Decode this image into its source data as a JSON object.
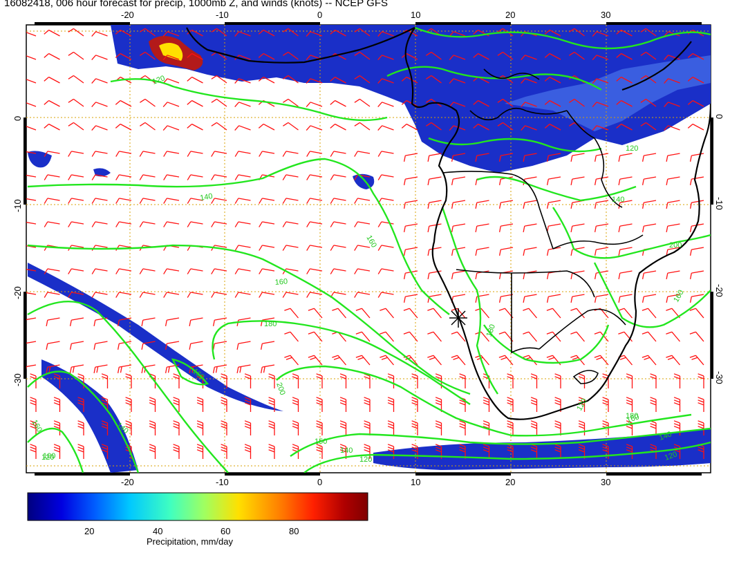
{
  "title": "16082418, 006 hour forecast for precip, 1000mb Z, and winds (knots) -- NCEP GFS",
  "lon_ticks": [
    "-20",
    "-10",
    "0",
    "10",
    "20",
    "30"
  ],
  "lat_ticks": [
    "0",
    "-10",
    "-20",
    "-30"
  ],
  "contour_labels": [
    "120",
    "140",
    "140",
    "120",
    "160",
    "180",
    "160",
    "200",
    "160",
    "140",
    "120",
    "150",
    "140",
    "100",
    "120",
    "160",
    "180",
    "140",
    "120",
    "160",
    "180",
    "120",
    "160",
    "200"
  ],
  "colorbar": {
    "ticks": [
      "20",
      "40",
      "60",
      "80"
    ],
    "label": "Precipitation, mm/day",
    "range": [
      0,
      100
    ],
    "colors": [
      "#00007f",
      "#0000e0",
      "#0060ff",
      "#00c8ff",
      "#40ffc0",
      "#a0ff60",
      "#ffe000",
      "#ff8000",
      "#ff2000",
      "#b00000",
      "#7f0000"
    ]
  },
  "colors": {
    "contour": "#22e61e",
    "barb": "#ff1010",
    "grid": "#d9a000",
    "precip": "#1a2fc8"
  }
}
